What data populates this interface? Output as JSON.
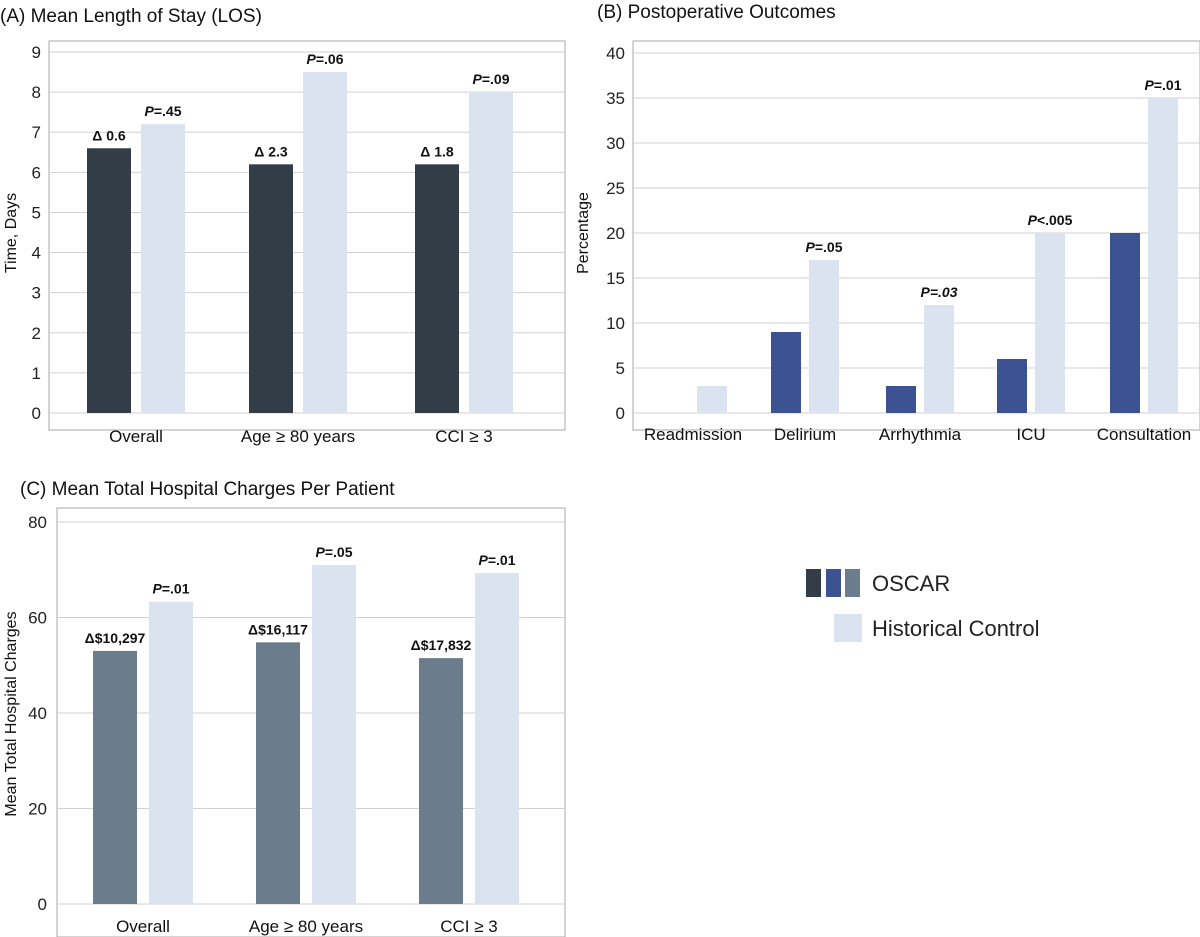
{
  "colors": {
    "oscar_los": "#333d47",
    "oscar_outcomes": "#3c5291",
    "oscar_charges": "#6b7d8c",
    "historical": "#dbe2f0"
  },
  "legend": {
    "oscar_label": "OSCAR",
    "historical_label": "Historical Control"
  },
  "chart_data": [
    {
      "id": "A",
      "type": "bar",
      "title": "(A)  Mean Length of Stay (LOS)",
      "xlabel": "",
      "ylabel": "Time, Days",
      "ylim": [
        0,
        9
      ],
      "yticks": [
        "0",
        "1",
        "2",
        "3",
        "4",
        "5",
        "6",
        "7",
        "8",
        "9"
      ],
      "categories": [
        "Overall",
        "Age ≥ 80 years",
        "CCI ≥ 3"
      ],
      "series": [
        {
          "name": "OSCAR",
          "values": [
            6.6,
            6.2,
            6.2
          ],
          "labels": [
            "Δ 0.6",
            "Δ 2.3",
            "Δ 1.8"
          ]
        },
        {
          "name": "Historical Control",
          "values": [
            7.2,
            8.5,
            8.0
          ],
          "labels": [
            "P=.45",
            "P=.06",
            "P=.09"
          ]
        }
      ]
    },
    {
      "id": "B",
      "type": "bar",
      "title": "(B)  Postoperative Outcomes",
      "xlabel": "",
      "ylabel": "Percentage",
      "ylim": [
        0,
        40
      ],
      "yticks": [
        "0",
        "5",
        "10",
        "15",
        "20",
        "25",
        "30",
        "35",
        "40"
      ],
      "categories": [
        "Readmission",
        "Delirium",
        "Arrhythmia",
        "ICU",
        "Consultation"
      ],
      "series": [
        {
          "name": "OSCAR",
          "values": [
            0,
            9,
            3,
            6,
            20
          ],
          "labels": [
            "",
            "",
            "",
            "",
            ""
          ]
        },
        {
          "name": "Historical Control",
          "values": [
            3,
            17,
            12,
            20,
            35
          ],
          "labels": [
            "",
            "P=.05",
            "P=.03",
            "P<.005",
            "P=.01"
          ]
        }
      ]
    },
    {
      "id": "C",
      "type": "bar",
      "title": "(C)  Mean Total Hospital Charges Per Patient",
      "xlabel": "",
      "ylabel": "Mean Total Hospital Charges",
      "ylim": [
        0,
        80
      ],
      "yticks": [
        "0",
        "20",
        "40",
        "60",
        "80"
      ],
      "categories": [
        "Overall",
        "Age ≥ 80 years",
        "CCI ≥ 3"
      ],
      "series": [
        {
          "name": "OSCAR",
          "values": [
            53,
            54.8,
            51.5
          ],
          "labels": [
            "Δ$10,297",
            "Δ$16,117",
            "Δ$17,832"
          ]
        },
        {
          "name": "Historical Control",
          "values": [
            63.3,
            71,
            69.3
          ],
          "labels": [
            "P=.01",
            "P=.05",
            "P=.01"
          ]
        }
      ]
    }
  ]
}
